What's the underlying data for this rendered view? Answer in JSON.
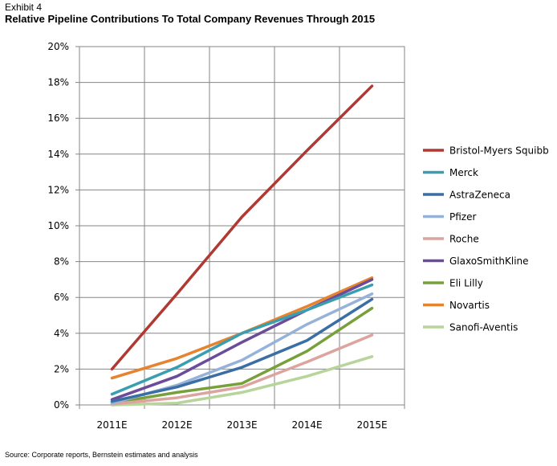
{
  "header": {
    "exhibit": "Exhibit 4",
    "title": "Relative Pipeline Contributions To Total Company Revenues Through 2015"
  },
  "footer": {
    "source": "Source: Corporate reports, Bernstein estimates and analysis"
  },
  "chart_data": {
    "type": "line",
    "title": "Relative Pipeline Contributions To Total Company Revenues Through 2015",
    "xlabel": "",
    "ylabel": "",
    "categories": [
      "2011E",
      "2012E",
      "2013E",
      "2014E",
      "2015E"
    ],
    "ylim": [
      0,
      20
    ],
    "yticks": [
      0,
      2,
      4,
      6,
      8,
      10,
      12,
      14,
      16,
      18,
      20
    ],
    "ytick_labels": [
      "0%",
      "2%",
      "4%",
      "6%",
      "8%",
      "10%",
      "12%",
      "14%",
      "16%",
      "18%",
      "20%"
    ],
    "grid": true,
    "legend_position": "right",
    "series": [
      {
        "name": "Bristol-Myers Squibb",
        "color": "#b03a33",
        "values": [
          2.0,
          6.2,
          10.5,
          14.2,
          17.8
        ]
      },
      {
        "name": "Merck",
        "color": "#3a9eb0",
        "values": [
          0.6,
          2.1,
          4.0,
          5.3,
          6.7
        ]
      },
      {
        "name": "AstraZeneca",
        "color": "#3b6ea5",
        "values": [
          0.2,
          1.0,
          2.1,
          3.6,
          5.9
        ]
      },
      {
        "name": "Pfizer",
        "color": "#97b2d8",
        "values": [
          0.1,
          1.1,
          2.5,
          4.5,
          6.2
        ]
      },
      {
        "name": "Roche",
        "color": "#dca39f",
        "values": [
          0.05,
          0.4,
          1.0,
          2.4,
          3.9
        ]
      },
      {
        "name": "GlaxoSmithKline",
        "color": "#6b4c9a",
        "values": [
          0.3,
          1.6,
          3.5,
          5.3,
          7.0
        ]
      },
      {
        "name": "Eli Lilly",
        "color": "#77a03a",
        "values": [
          0.1,
          0.7,
          1.2,
          3.0,
          5.4
        ]
      },
      {
        "name": "Novartis",
        "color": "#e6832f",
        "values": [
          1.5,
          2.6,
          4.0,
          5.5,
          7.1
        ]
      },
      {
        "name": "Sanofi-Aventis",
        "color": "#b7d49a",
        "values": [
          0.0,
          0.1,
          0.7,
          1.6,
          2.7
        ]
      }
    ]
  }
}
